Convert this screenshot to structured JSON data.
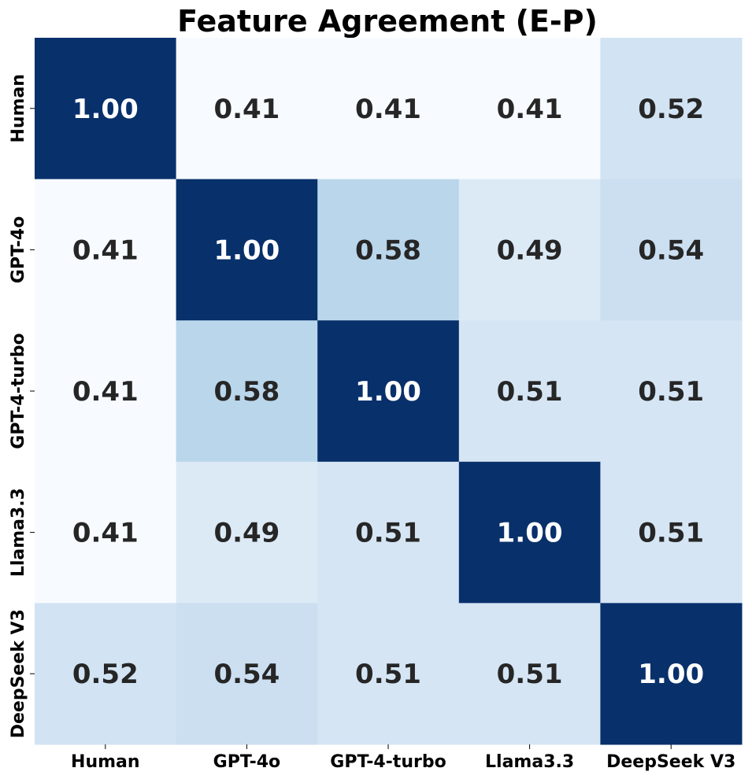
{
  "chart_data": {
    "type": "heatmap",
    "title": "Feature Agreement (E-P)",
    "xlabel": "",
    "ylabel": "",
    "x_categories": [
      "Human",
      "GPT-4o",
      "GPT-4-turbo",
      "Llama3.3",
      "DeepSeek V3"
    ],
    "y_categories": [
      "Human",
      "GPT-4o",
      "GPT-4-turbo",
      "Llama3.3",
      "DeepSeek V3"
    ],
    "values": [
      [
        1.0,
        0.41,
        0.41,
        0.41,
        0.52
      ],
      [
        0.41,
        1.0,
        0.58,
        0.49,
        0.54
      ],
      [
        0.41,
        0.58,
        1.0,
        0.51,
        0.51
      ],
      [
        0.41,
        0.49,
        0.51,
        1.0,
        0.51
      ],
      [
        0.52,
        0.54,
        0.51,
        0.51,
        1.0
      ]
    ],
    "value_format": "0.00",
    "colormap": "Blues",
    "vmin": 0.41,
    "vmax": 1.0,
    "colorbar": false,
    "label_color_dark": "#262626",
    "label_color_light": "#ffffff"
  }
}
